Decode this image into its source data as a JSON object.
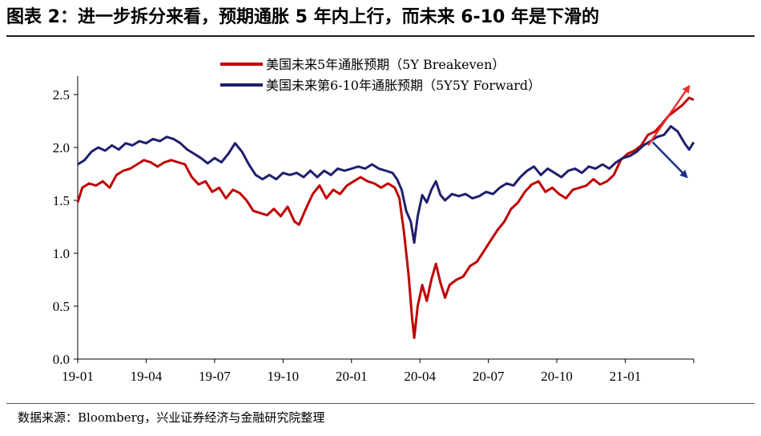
{
  "header": {
    "title": "图表 2：进一步拆分来看，预期通胀 5 年内上行，而未来 6-10 年是下滑的"
  },
  "footer": {
    "source": "数据来源：Bloomberg，兴业证券经济与金融研究院整理"
  },
  "colors": {
    "series1": "#c00000",
    "series2": "#1f1f6e",
    "axis": "#000000"
  },
  "chart_data": {
    "type": "line",
    "title": "",
    "xlabel": "",
    "ylabel": "",
    "ylim": [
      0.0,
      2.5
    ],
    "yticks": [
      0.0,
      0.5,
      1.0,
      1.5,
      2.0,
      2.5
    ],
    "ytick_labels": [
      "0.0",
      "0.5",
      "1.0",
      "1.5",
      "2.0",
      "2.5"
    ],
    "xlim": [
      0,
      27
    ],
    "xticks": [
      0,
      3,
      6,
      9,
      12,
      15,
      18,
      21,
      24
    ],
    "xtick_labels": [
      "19-01",
      "19-04",
      "19-07",
      "19-10",
      "20-01",
      "20-04",
      "20-07",
      "20-10",
      "21-01"
    ],
    "grid": false,
    "legend": "top-center",
    "series": [
      {
        "name": "美国未来5年通胀预期（5Y Breakeven）",
        "color": "#c00000",
        "points": [
          [
            0.0,
            1.48
          ],
          [
            0.2,
            1.62
          ],
          [
            0.5,
            1.66
          ],
          [
            0.8,
            1.64
          ],
          [
            1.1,
            1.68
          ],
          [
            1.4,
            1.62
          ],
          [
            1.7,
            1.74
          ],
          [
            2.0,
            1.78
          ],
          [
            2.3,
            1.8
          ],
          [
            2.6,
            1.84
          ],
          [
            2.9,
            1.88
          ],
          [
            3.2,
            1.86
          ],
          [
            3.5,
            1.82
          ],
          [
            3.8,
            1.86
          ],
          [
            4.1,
            1.88
          ],
          [
            4.4,
            1.86
          ],
          [
            4.7,
            1.84
          ],
          [
            5.0,
            1.72
          ],
          [
            5.3,
            1.65
          ],
          [
            5.6,
            1.68
          ],
          [
            5.9,
            1.58
          ],
          [
            6.2,
            1.62
          ],
          [
            6.5,
            1.52
          ],
          [
            6.8,
            1.6
          ],
          [
            7.1,
            1.57
          ],
          [
            7.4,
            1.5
          ],
          [
            7.7,
            1.4
          ],
          [
            8.0,
            1.38
          ],
          [
            8.3,
            1.36
          ],
          [
            8.6,
            1.42
          ],
          [
            8.9,
            1.35
          ],
          [
            9.2,
            1.44
          ],
          [
            9.5,
            1.3
          ],
          [
            9.7,
            1.27
          ],
          [
            10.0,
            1.42
          ],
          [
            10.3,
            1.56
          ],
          [
            10.6,
            1.64
          ],
          [
            10.9,
            1.52
          ],
          [
            11.2,
            1.6
          ],
          [
            11.5,
            1.56
          ],
          [
            11.8,
            1.64
          ],
          [
            12.1,
            1.68
          ],
          [
            12.4,
            1.72
          ],
          [
            12.7,
            1.68
          ],
          [
            13.0,
            1.66
          ],
          [
            13.3,
            1.62
          ],
          [
            13.6,
            1.66
          ],
          [
            13.9,
            1.62
          ],
          [
            14.1,
            1.52
          ],
          [
            14.3,
            1.2
          ],
          [
            14.5,
            0.8
          ],
          [
            14.65,
            0.4
          ],
          [
            14.75,
            0.2
          ],
          [
            14.9,
            0.5
          ],
          [
            15.1,
            0.7
          ],
          [
            15.3,
            0.55
          ],
          [
            15.5,
            0.75
          ],
          [
            15.7,
            0.9
          ],
          [
            15.9,
            0.72
          ],
          [
            16.1,
            0.58
          ],
          [
            16.3,
            0.7
          ],
          [
            16.6,
            0.75
          ],
          [
            16.9,
            0.78
          ],
          [
            17.2,
            0.88
          ],
          [
            17.5,
            0.92
          ],
          [
            17.8,
            1.02
          ],
          [
            18.1,
            1.12
          ],
          [
            18.4,
            1.22
          ],
          [
            18.7,
            1.3
          ],
          [
            19.0,
            1.42
          ],
          [
            19.3,
            1.48
          ],
          [
            19.6,
            1.58
          ],
          [
            19.9,
            1.65
          ],
          [
            20.2,
            1.68
          ],
          [
            20.5,
            1.58
          ],
          [
            20.8,
            1.62
          ],
          [
            21.1,
            1.56
          ],
          [
            21.4,
            1.52
          ],
          [
            21.7,
            1.6
          ],
          [
            22.0,
            1.62
          ],
          [
            22.3,
            1.64
          ],
          [
            22.6,
            1.7
          ],
          [
            22.9,
            1.65
          ],
          [
            23.2,
            1.68
          ],
          [
            23.5,
            1.74
          ],
          [
            23.8,
            1.88
          ],
          [
            24.1,
            1.94
          ],
          [
            24.4,
            1.97
          ],
          [
            24.7,
            2.02
          ],
          [
            25.0,
            2.12
          ],
          [
            25.3,
            2.15
          ],
          [
            25.6,
            2.22
          ],
          [
            25.9,
            2.3
          ],
          [
            26.2,
            2.35
          ],
          [
            26.5,
            2.4
          ],
          [
            26.8,
            2.47
          ],
          [
            27.0,
            2.45
          ]
        ]
      },
      {
        "name": "美国未来第6-10年通胀预期（5Y5Y Forward）",
        "color": "#1f1f6e",
        "points": [
          [
            0.0,
            1.84
          ],
          [
            0.3,
            1.88
          ],
          [
            0.6,
            1.96
          ],
          [
            0.9,
            2.0
          ],
          [
            1.2,
            1.97
          ],
          [
            1.5,
            2.02
          ],
          [
            1.8,
            1.98
          ],
          [
            2.1,
            2.04
          ],
          [
            2.4,
            2.02
          ],
          [
            2.7,
            2.06
          ],
          [
            3.0,
            2.04
          ],
          [
            3.3,
            2.08
          ],
          [
            3.6,
            2.06
          ],
          [
            3.9,
            2.1
          ],
          [
            4.2,
            2.08
          ],
          [
            4.5,
            2.04
          ],
          [
            4.8,
            1.98
          ],
          [
            5.1,
            1.94
          ],
          [
            5.4,
            1.9
          ],
          [
            5.7,
            1.85
          ],
          [
            6.0,
            1.9
          ],
          [
            6.3,
            1.86
          ],
          [
            6.6,
            1.94
          ],
          [
            6.9,
            2.04
          ],
          [
            7.2,
            1.96
          ],
          [
            7.5,
            1.84
          ],
          [
            7.8,
            1.74
          ],
          [
            8.1,
            1.7
          ],
          [
            8.4,
            1.74
          ],
          [
            8.7,
            1.7
          ],
          [
            9.0,
            1.76
          ],
          [
            9.3,
            1.74
          ],
          [
            9.6,
            1.76
          ],
          [
            9.9,
            1.72
          ],
          [
            10.2,
            1.78
          ],
          [
            10.5,
            1.72
          ],
          [
            10.8,
            1.78
          ],
          [
            11.1,
            1.74
          ],
          [
            11.4,
            1.8
          ],
          [
            11.7,
            1.78
          ],
          [
            12.0,
            1.8
          ],
          [
            12.3,
            1.82
          ],
          [
            12.6,
            1.8
          ],
          [
            12.9,
            1.84
          ],
          [
            13.2,
            1.8
          ],
          [
            13.5,
            1.78
          ],
          [
            13.8,
            1.76
          ],
          [
            14.0,
            1.7
          ],
          [
            14.2,
            1.6
          ],
          [
            14.4,
            1.4
          ],
          [
            14.6,
            1.3
          ],
          [
            14.75,
            1.1
          ],
          [
            14.9,
            1.35
          ],
          [
            15.1,
            1.55
          ],
          [
            15.3,
            1.48
          ],
          [
            15.5,
            1.6
          ],
          [
            15.7,
            1.68
          ],
          [
            15.9,
            1.55
          ],
          [
            16.1,
            1.5
          ],
          [
            16.4,
            1.56
          ],
          [
            16.7,
            1.54
          ],
          [
            17.0,
            1.56
          ],
          [
            17.3,
            1.52
          ],
          [
            17.6,
            1.54
          ],
          [
            17.9,
            1.58
          ],
          [
            18.2,
            1.56
          ],
          [
            18.5,
            1.62
          ],
          [
            18.8,
            1.66
          ],
          [
            19.1,
            1.64
          ],
          [
            19.4,
            1.72
          ],
          [
            19.7,
            1.78
          ],
          [
            20.0,
            1.82
          ],
          [
            20.3,
            1.74
          ],
          [
            20.6,
            1.8
          ],
          [
            20.9,
            1.76
          ],
          [
            21.2,
            1.72
          ],
          [
            21.5,
            1.78
          ],
          [
            21.8,
            1.8
          ],
          [
            22.1,
            1.76
          ],
          [
            22.4,
            1.82
          ],
          [
            22.7,
            1.8
          ],
          [
            23.0,
            1.84
          ],
          [
            23.3,
            1.8
          ],
          [
            23.6,
            1.86
          ],
          [
            23.9,
            1.9
          ],
          [
            24.2,
            1.92
          ],
          [
            24.5,
            1.96
          ],
          [
            24.8,
            2.02
          ],
          [
            25.1,
            2.06
          ],
          [
            25.4,
            2.1
          ],
          [
            25.7,
            2.12
          ],
          [
            26.0,
            2.2
          ],
          [
            26.3,
            2.15
          ],
          [
            26.6,
            2.04
          ],
          [
            26.8,
            1.98
          ],
          [
            27.0,
            2.05
          ]
        ]
      }
    ],
    "annotations": [
      {
        "type": "arrow",
        "color": "#e83030",
        "from": [
          25.0,
          2.02
        ],
        "to": [
          26.8,
          2.58
        ]
      },
      {
        "type": "arrow",
        "color": "#1f2f8a",
        "from": [
          25.2,
          2.05
        ],
        "to": [
          26.7,
          1.72
        ]
      }
    ]
  }
}
